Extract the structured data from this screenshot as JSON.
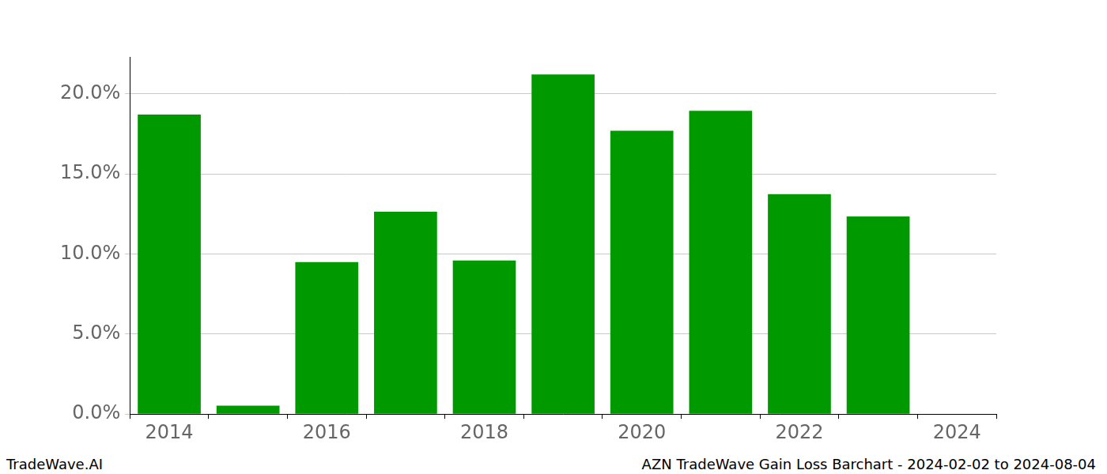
{
  "chart_data": {
    "type": "bar",
    "title": "AZN TradeWave Gain Loss Barchart - 2024-02-02 to 2024-08-04",
    "source": "TradeWave.AI",
    "categories": [
      "2014",
      null,
      "2016",
      null,
      "2018",
      null,
      "2020",
      null,
      "2022",
      null,
      "2024"
    ],
    "values": [
      18.7,
      0.53,
      9.49,
      12.63,
      9.59,
      21.2,
      17.69,
      18.94,
      13.73,
      12.34,
      null
    ],
    "color": "#009900",
    "ylim": [
      0,
      22.3
    ],
    "yticks": [
      {
        "value": 0,
        "label": "0.0%"
      },
      {
        "value": 5,
        "label": "5.0%"
      },
      {
        "value": 10,
        "label": "10.0%"
      },
      {
        "value": 15,
        "label": "15.0%"
      },
      {
        "value": 20,
        "label": "20.0%"
      }
    ],
    "grid": true
  }
}
